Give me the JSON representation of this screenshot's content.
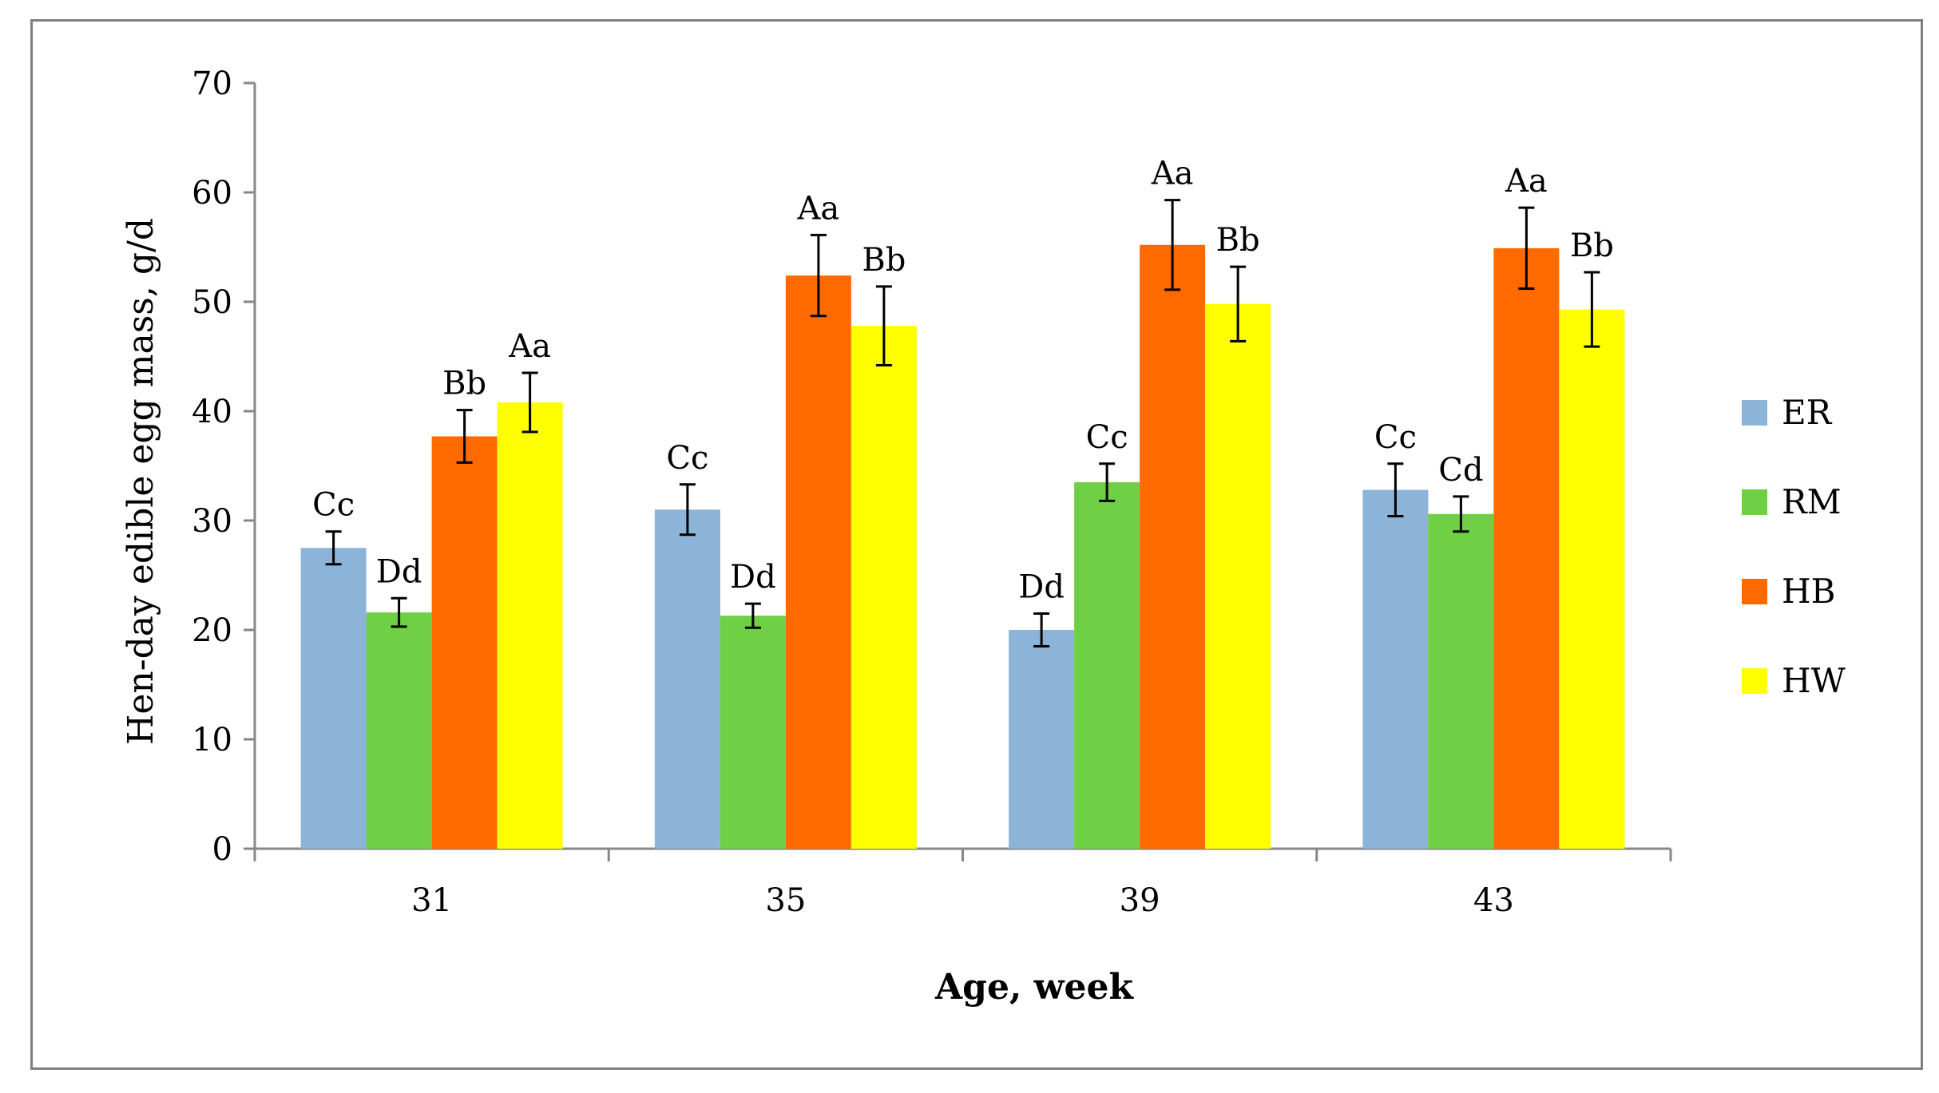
{
  "chart_data": {
    "type": "bar",
    "title": "",
    "xlabel": "Age, week",
    "ylabel": "Hen-day edible  egg mass, g/d",
    "ylim": [
      0,
      70
    ],
    "yticks": [
      0,
      10,
      20,
      30,
      40,
      50,
      60,
      70
    ],
    "categories": [
      "31",
      "35",
      "39",
      "43"
    ],
    "grid": false,
    "legend_position": "right",
    "series": [
      {
        "name": "ER",
        "color": "#8bb4d8",
        "values": [
          27.5,
          31.0,
          20.0,
          32.8
        ],
        "errors": [
          1.5,
          2.3,
          1.5,
          2.4
        ],
        "labels": [
          "Cc",
          "Cc",
          "Dd",
          "Cc"
        ]
      },
      {
        "name": "RM",
        "color": "#6fd045",
        "values": [
          21.6,
          21.3,
          33.5,
          30.6
        ],
        "errors": [
          1.3,
          1.1,
          1.7,
          1.6
        ],
        "labels": [
          "Dd",
          "Dd",
          "Cc",
          "Cd"
        ]
      },
      {
        "name": "HB",
        "color": "#ff6a00",
        "values": [
          37.7,
          52.4,
          55.2,
          54.9
        ],
        "errors": [
          2.4,
          3.7,
          4.1,
          3.7
        ],
        "labels": [
          "Bb",
          "Aa",
          "Aa",
          "Aa"
        ]
      },
      {
        "name": "HW",
        "color": "#ffff00",
        "values": [
          40.8,
          47.8,
          49.8,
          49.3
        ],
        "errors": [
          2.7,
          3.6,
          3.4,
          3.4
        ],
        "labels": [
          "Aa",
          "Bb",
          "Bb",
          "Bb"
        ]
      }
    ]
  }
}
